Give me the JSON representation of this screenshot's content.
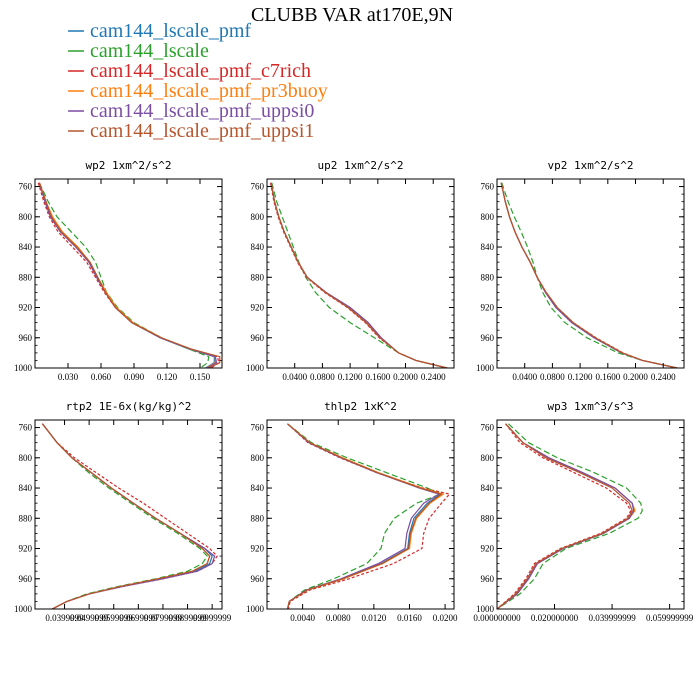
{
  "figure": {
    "title": "CLUBB VAR at170E,9N"
  },
  "legend": [
    {
      "name": "cam144_lscale_pmf",
      "color": "#1f77b4"
    },
    {
      "name": "cam144_lscale",
      "color": "#2ca02c"
    },
    {
      "name": "cam144_lscale_pmf_c7rich",
      "color": "#d62728"
    },
    {
      "name": "cam144_lscale_pmf_pr3buoy",
      "color": "#ff7f0e"
    },
    {
      "name": "cam144_lscale_pmf_uppsi0",
      "color": "#7b4ea3"
    },
    {
      "name": "cam144_lscale_pmf_uppsi1",
      "color": "#b5562d"
    }
  ],
  "chart_data": [
    {
      "type": "line",
      "title": "wp2  1xm^2/s^2",
      "xlim": [
        0,
        0.17
      ],
      "ylim": [
        1000,
        750
      ],
      "xticks": [
        0.03,
        0.06,
        0.09,
        0.12,
        0.15
      ],
      "xtick_labels": [
        "0.030",
        "0.060",
        "0.090",
        "0.120",
        "0.150"
      ],
      "yticks": [
        760,
        800,
        840,
        880,
        920,
        960,
        1000
      ],
      "y": [
        755,
        780,
        800,
        820,
        840,
        860,
        880,
        900,
        920,
        940,
        960,
        975,
        985,
        993,
        1000
      ],
      "series": [
        {
          "name": "cam144_lscale_pmf",
          "x": [
            0.004,
            0.01,
            0.015,
            0.024,
            0.038,
            0.05,
            0.057,
            0.064,
            0.073,
            0.088,
            0.114,
            0.14,
            0.163,
            0.163,
            0.155
          ]
        },
        {
          "name": "cam144_lscale",
          "x": [
            0.004,
            0.012,
            0.02,
            0.033,
            0.046,
            0.055,
            0.06,
            0.065,
            0.075,
            0.09,
            0.115,
            0.14,
            0.158,
            0.157,
            0.15
          ]
        },
        {
          "name": "cam144_lscale_pmf_c7rich",
          "x": [
            0.003,
            0.008,
            0.013,
            0.021,
            0.034,
            0.047,
            0.055,
            0.063,
            0.073,
            0.088,
            0.114,
            0.142,
            0.166,
            0.167,
            0.16
          ]
        },
        {
          "name": "cam144_lscale_pmf_pr3buoy",
          "x": [
            0.004,
            0.01,
            0.016,
            0.025,
            0.039,
            0.05,
            0.057,
            0.065,
            0.074,
            0.089,
            0.115,
            0.141,
            0.164,
            0.164,
            0.156
          ]
        },
        {
          "name": "cam144_lscale_pmf_uppsi0",
          "x": [
            0.004,
            0.009,
            0.014,
            0.023,
            0.037,
            0.049,
            0.056,
            0.064,
            0.073,
            0.088,
            0.114,
            0.141,
            0.164,
            0.165,
            0.157
          ]
        },
        {
          "name": "cam144_lscale_pmf_uppsi1",
          "x": [
            0.004,
            0.01,
            0.015,
            0.024,
            0.038,
            0.05,
            0.057,
            0.064,
            0.073,
            0.088,
            0.115,
            0.142,
            0.168,
            0.168,
            0.158
          ]
        }
      ]
    },
    {
      "type": "line",
      "title": "up2  1xm^2/s^2",
      "xlim": [
        0,
        0.27
      ],
      "ylim": [
        1000,
        750
      ],
      "xticks": [
        0.04,
        0.08,
        0.12,
        0.16,
        0.2,
        0.24
      ],
      "xtick_labels": [
        "0.0400",
        "0.0800",
        "0.1200",
        "0.1600",
        "0.2000",
        "0.2400"
      ],
      "yticks": [
        760,
        800,
        840,
        880,
        920,
        960,
        1000
      ],
      "y": [
        755,
        780,
        800,
        820,
        840,
        860,
        880,
        900,
        920,
        940,
        960,
        980,
        990,
        1000
      ],
      "series": [
        {
          "name": "cam144_lscale_pmf",
          "x": [
            0.006,
            0.011,
            0.017,
            0.025,
            0.035,
            0.045,
            0.058,
            0.085,
            0.12,
            0.146,
            0.164,
            0.19,
            0.215,
            0.26
          ]
        },
        {
          "name": "cam144_lscale",
          "x": [
            0.007,
            0.014,
            0.022,
            0.03,
            0.038,
            0.046,
            0.056,
            0.07,
            0.09,
            0.12,
            0.155,
            0.19,
            0.215,
            0.26
          ]
        },
        {
          "name": "cam144_lscale_pmf_c7rich",
          "x": [
            0.005,
            0.01,
            0.016,
            0.024,
            0.034,
            0.044,
            0.057,
            0.083,
            0.116,
            0.142,
            0.162,
            0.19,
            0.215,
            0.26
          ]
        },
        {
          "name": "cam144_lscale_pmf_pr3buoy",
          "x": [
            0.006,
            0.011,
            0.017,
            0.025,
            0.035,
            0.045,
            0.058,
            0.085,
            0.119,
            0.145,
            0.164,
            0.19,
            0.215,
            0.26
          ]
        },
        {
          "name": "cam144_lscale_pmf_uppsi0",
          "x": [
            0.006,
            0.011,
            0.017,
            0.025,
            0.035,
            0.045,
            0.058,
            0.085,
            0.12,
            0.146,
            0.165,
            0.19,
            0.215,
            0.26
          ]
        },
        {
          "name": "cam144_lscale_pmf_uppsi1",
          "x": [
            0.006,
            0.011,
            0.017,
            0.025,
            0.035,
            0.045,
            0.058,
            0.084,
            0.117,
            0.143,
            0.163,
            0.19,
            0.215,
            0.26
          ]
        }
      ]
    },
    {
      "type": "line",
      "title": "vp2  1xm^2/s^2",
      "xlim": [
        0,
        0.27
      ],
      "ylim": [
        1000,
        750
      ],
      "xticks": [
        0.04,
        0.08,
        0.12,
        0.16,
        0.2,
        0.24
      ],
      "xtick_labels": [
        "0.0400",
        "0.0800",
        "0.1200",
        "0.1600",
        "0.2000",
        "0.2400"
      ],
      "yticks": [
        760,
        800,
        840,
        880,
        920,
        960,
        1000
      ],
      "y": [
        755,
        780,
        800,
        820,
        840,
        860,
        880,
        900,
        920,
        940,
        960,
        980,
        990,
        1000
      ],
      "series": [
        {
          "name": "cam144_lscale_pmf",
          "x": [
            0.006,
            0.012,
            0.018,
            0.026,
            0.036,
            0.048,
            0.058,
            0.07,
            0.085,
            0.108,
            0.14,
            0.18,
            0.21,
            0.26
          ]
        },
        {
          "name": "cam144_lscale",
          "x": [
            0.007,
            0.016,
            0.025,
            0.035,
            0.044,
            0.052,
            0.058,
            0.066,
            0.078,
            0.098,
            0.13,
            0.175,
            0.21,
            0.26
          ]
        },
        {
          "name": "cam144_lscale_pmf_c7rich",
          "x": [
            0.006,
            0.012,
            0.018,
            0.026,
            0.036,
            0.048,
            0.058,
            0.071,
            0.087,
            0.11,
            0.143,
            0.182,
            0.21,
            0.26
          ]
        },
        {
          "name": "cam144_lscale_pmf_pr3buoy",
          "x": [
            0.006,
            0.012,
            0.018,
            0.026,
            0.036,
            0.048,
            0.058,
            0.07,
            0.086,
            0.109,
            0.141,
            0.181,
            0.21,
            0.26
          ]
        },
        {
          "name": "cam144_lscale_pmf_uppsi0",
          "x": [
            0.006,
            0.012,
            0.018,
            0.026,
            0.036,
            0.048,
            0.058,
            0.07,
            0.085,
            0.108,
            0.14,
            0.18,
            0.21,
            0.26
          ]
        },
        {
          "name": "cam144_lscale_pmf_uppsi1",
          "x": [
            0.006,
            0.012,
            0.018,
            0.026,
            0.036,
            0.048,
            0.058,
            0.071,
            0.087,
            0.11,
            0.142,
            0.181,
            0.21,
            0.26
          ]
        }
      ]
    },
    {
      "type": "line",
      "title": "rtp2  1E-6x(kg/kg)^2",
      "xlim": [
        0.028,
        0.104
      ],
      "ylim": [
        1000,
        750
      ],
      "xticks": [
        0.0399999,
        0.0499999,
        0.0599999,
        0.0699999,
        0.0799999,
        0.0899999,
        0.0999999
      ],
      "xtick_labels": [
        "0.0399999",
        "0.0499999",
        "0.0599999",
        "0.0699999",
        "0.0799999",
        "0.0899999",
        "0.0999999"
      ],
      "yticks": [
        760,
        800,
        840,
        880,
        920,
        960,
        1000
      ],
      "y": [
        755,
        780,
        800,
        820,
        840,
        860,
        880,
        900,
        920,
        930,
        940,
        950,
        960,
        970,
        980,
        990,
        1000
      ],
      "series": [
        {
          "name": "cam144_lscale_pmf",
          "x": [
            0.031,
            0.037,
            0.043,
            0.051,
            0.059,
            0.068,
            0.077,
            0.087,
            0.097,
            0.1,
            0.099,
            0.093,
            0.079,
            0.063,
            0.05,
            0.041,
            0.035
          ]
        },
        {
          "name": "cam144_lscale",
          "x": [
            0.031,
            0.037,
            0.043,
            0.05,
            0.058,
            0.067,
            0.076,
            0.086,
            0.095,
            0.098,
            0.096,
            0.09,
            0.077,
            0.062,
            0.049,
            0.041,
            0.035
          ]
        },
        {
          "name": "cam144_lscale_pmf_c7rich",
          "x": [
            0.031,
            0.037,
            0.044,
            0.053,
            0.062,
            0.072,
            0.081,
            0.09,
            0.099,
            0.102,
            0.1,
            0.094,
            0.08,
            0.064,
            0.05,
            0.041,
            0.035
          ]
        },
        {
          "name": "cam144_lscale_pmf_pr3buoy",
          "x": [
            0.031,
            0.037,
            0.043,
            0.051,
            0.059,
            0.068,
            0.077,
            0.087,
            0.096,
            0.099,
            0.098,
            0.092,
            0.078,
            0.063,
            0.05,
            0.041,
            0.035
          ]
        },
        {
          "name": "cam144_lscale_pmf_uppsi0",
          "x": [
            0.031,
            0.037,
            0.043,
            0.051,
            0.059,
            0.068,
            0.077,
            0.087,
            0.097,
            0.101,
            0.1,
            0.094,
            0.08,
            0.064,
            0.05,
            0.041,
            0.035
          ]
        },
        {
          "name": "cam144_lscale_pmf_uppsi1",
          "x": [
            0.031,
            0.037,
            0.043,
            0.051,
            0.059,
            0.068,
            0.077,
            0.087,
            0.096,
            0.099,
            0.098,
            0.092,
            0.078,
            0.063,
            0.05,
            0.041,
            0.035
          ]
        }
      ]
    },
    {
      "type": "line",
      "title": "thlp2  1xK^2",
      "xlim": [
        0,
        0.021
      ],
      "ylim": [
        1000,
        750
      ],
      "xticks": [
        0.004,
        0.008,
        0.012,
        0.016,
        0.02
      ],
      "xtick_labels": [
        "0.0040",
        "0.0080",
        "0.0120",
        "0.0160",
        "0.0200"
      ],
      "yticks": [
        760,
        800,
        840,
        880,
        920,
        960,
        1000
      ],
      "y": [
        755,
        780,
        800,
        820,
        840,
        848,
        860,
        880,
        900,
        920,
        940,
        960,
        975,
        990,
        1000
      ],
      "series": [
        {
          "name": "cam144_lscale_pmf",
          "x": [
            0.0023,
            0.0048,
            0.0084,
            0.0125,
            0.0172,
            0.0195,
            0.018,
            0.0165,
            0.016,
            0.0158,
            0.0128,
            0.0085,
            0.0045,
            0.0025,
            0.0023
          ]
        },
        {
          "name": "cam144_lscale",
          "x": [
            0.0023,
            0.005,
            0.009,
            0.0135,
            0.018,
            0.0195,
            0.0168,
            0.0143,
            0.0132,
            0.0128,
            0.0112,
            0.0075,
            0.0042,
            0.0025,
            0.0023
          ]
        },
        {
          "name": "cam144_lscale_pmf_c7rich",
          "x": [
            0.0023,
            0.0046,
            0.0082,
            0.0124,
            0.0175,
            0.0205,
            0.0196,
            0.0182,
            0.0176,
            0.0174,
            0.0142,
            0.0092,
            0.0048,
            0.0026,
            0.0024
          ]
        },
        {
          "name": "cam144_lscale_pmf_pr3buoy",
          "x": [
            0.0023,
            0.0048,
            0.0085,
            0.0126,
            0.0173,
            0.0198,
            0.0183,
            0.0168,
            0.0162,
            0.016,
            0.013,
            0.0086,
            0.0045,
            0.0025,
            0.0023
          ]
        },
        {
          "name": "cam144_lscale_pmf_uppsi0",
          "x": [
            0.0023,
            0.0047,
            0.0083,
            0.0124,
            0.0171,
            0.0193,
            0.0176,
            0.0162,
            0.0157,
            0.0155,
            0.0125,
            0.0083,
            0.0044,
            0.0025,
            0.0023
          ]
        },
        {
          "name": "cam144_lscale_pmf_uppsi1",
          "x": [
            0.0023,
            0.0048,
            0.0084,
            0.0125,
            0.0172,
            0.0196,
            0.0182,
            0.0167,
            0.0161,
            0.0159,
            0.0129,
            0.0085,
            0.0045,
            0.0025,
            0.0023
          ]
        }
      ]
    },
    {
      "type": "line",
      "title": "wp3  1xm^3/s^3",
      "xlim": [
        0,
        0.065
      ],
      "ylim": [
        1000,
        750
      ],
      "xticks": [
        0,
        0.02,
        0.0399999,
        0.0599999
      ],
      "xtick_labels": [
        "0.000000000",
        "0.020000000",
        "0.039999999",
        "0.059999999"
      ],
      "yticks": [
        760,
        800,
        840,
        880,
        920,
        960,
        1000
      ],
      "y": [
        755,
        780,
        800,
        820,
        840,
        860,
        870,
        880,
        900,
        920,
        940,
        960,
        980,
        1000
      ],
      "series": [
        {
          "name": "cam144_lscale_pmf",
          "x": [
            0.003,
            0.009,
            0.018,
            0.03,
            0.041,
            0.047,
            0.0475,
            0.046,
            0.037,
            0.023,
            0.014,
            0.011,
            0.007,
            0.0
          ]
        },
        {
          "name": "cam144_lscale",
          "x": [
            0.004,
            0.011,
            0.021,
            0.034,
            0.045,
            0.05,
            0.0505,
            0.049,
            0.039,
            0.024,
            0.016,
            0.013,
            0.008,
            0.0
          ]
        },
        {
          "name": "cam144_lscale_pmf_c7rich",
          "x": [
            0.003,
            0.008,
            0.016,
            0.027,
            0.038,
            0.045,
            0.0465,
            0.045,
            0.036,
            0.022,
            0.013,
            0.01,
            0.006,
            0.0
          ]
        },
        {
          "name": "cam144_lscale_pmf_pr3buoy",
          "x": [
            0.003,
            0.009,
            0.018,
            0.03,
            0.041,
            0.047,
            0.048,
            0.046,
            0.037,
            0.023,
            0.014,
            0.011,
            0.007,
            0.0
          ]
        },
        {
          "name": "cam144_lscale_pmf_uppsi0",
          "x": [
            0.003,
            0.009,
            0.018,
            0.03,
            0.041,
            0.047,
            0.0475,
            0.046,
            0.037,
            0.023,
            0.014,
            0.011,
            0.007,
            0.0
          ]
        },
        {
          "name": "cam144_lscale_pmf_uppsi1",
          "x": [
            0.003,
            0.009,
            0.017,
            0.029,
            0.04,
            0.046,
            0.047,
            0.0455,
            0.0365,
            0.0225,
            0.0135,
            0.0105,
            0.0065,
            0.0
          ]
        }
      ]
    }
  ]
}
